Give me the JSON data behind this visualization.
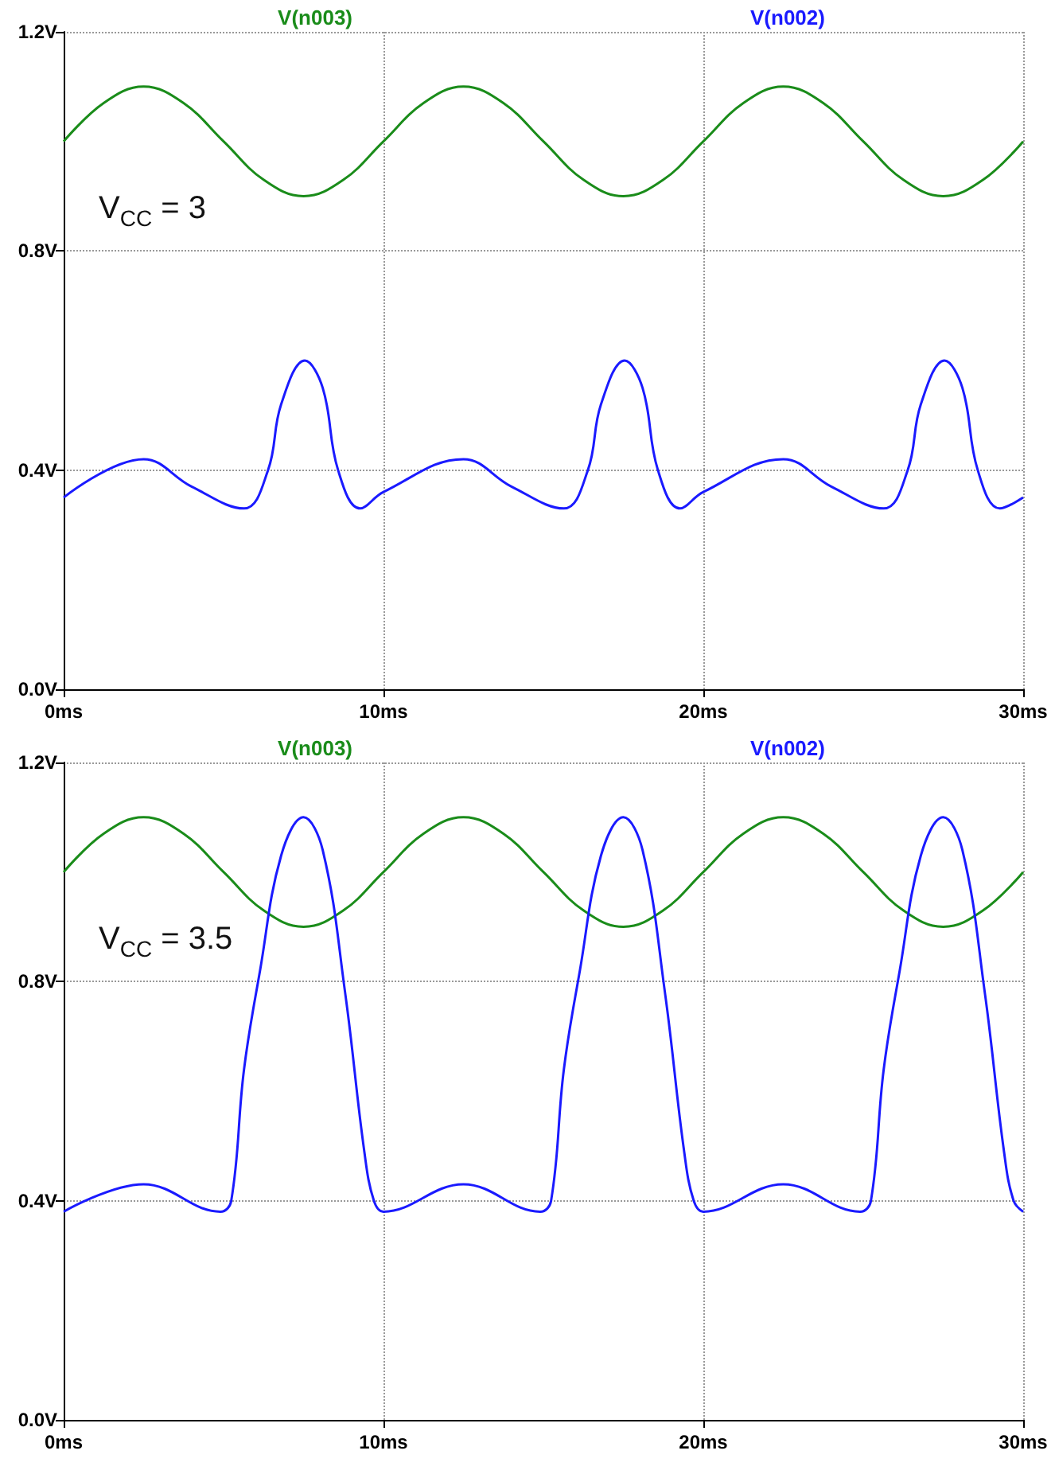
{
  "chart_data": [
    {
      "type": "line",
      "legend": "top",
      "grid": true,
      "xlim": [
        0,
        30
      ],
      "ylim": [
        0,
        1.2
      ],
      "xticks": [
        {
          "value": 0,
          "label": "0ms"
        },
        {
          "value": 10,
          "label": "10ms"
        },
        {
          "value": 20,
          "label": "20ms"
        },
        {
          "value": 30,
          "label": "30ms"
        }
      ],
      "yticks": [
        {
          "value": 0,
          "label": "0.0V"
        },
        {
          "value": 0.4,
          "label": "0.4V"
        },
        {
          "value": 0.8,
          "label": "0.8V"
        },
        {
          "value": 1.2,
          "label": "1.2V"
        }
      ],
      "annotations": [
        "V$_{CC}$ = 3"
      ],
      "series": [
        {
          "name": "V(n003)",
          "color": "#1a8c1a",
          "x": [
            0,
            1.25,
            2.5,
            3.75,
            5,
            6.25,
            7.5,
            8.75,
            10,
            11.25,
            12.5,
            13.75,
            15,
            16.25,
            17.5,
            18.75,
            20,
            21.25,
            22.5,
            23.75,
            25,
            26.25,
            27.5,
            28.75,
            30
          ],
          "values": [
            1.0,
            1.07,
            1.1,
            1.07,
            1.0,
            0.93,
            0.9,
            0.93,
            1.0,
            1.07,
            1.1,
            1.07,
            1.0,
            0.93,
            0.9,
            0.93,
            1.0,
            1.07,
            1.1,
            1.07,
            1.0,
            0.93,
            0.9,
            0.93,
            1.0
          ]
        },
        {
          "name": "V(n002)",
          "color": "#1a1aff",
          "x": [
            0,
            2.5,
            4,
            5.64,
            6.39,
            6.8,
            7.54,
            8.1,
            8.58,
            9.27,
            10,
            12.5,
            14,
            15.64,
            16.39,
            16.8,
            17.54,
            18.1,
            18.58,
            19.27,
            20,
            22.5,
            24,
            25.64,
            26.39,
            26.8,
            27.54,
            28.1,
            28.58,
            29.27,
            30
          ],
          "values": [
            0.35,
            0.42,
            0.37,
            0.33,
            0.4,
            0.52,
            0.6,
            0.55,
            0.4,
            0.33,
            0.36,
            0.42,
            0.37,
            0.33,
            0.4,
            0.52,
            0.6,
            0.55,
            0.4,
            0.33,
            0.36,
            0.42,
            0.37,
            0.33,
            0.4,
            0.52,
            0.6,
            0.55,
            0.4,
            0.33,
            0.35
          ]
        }
      ]
    },
    {
      "type": "line",
      "legend": "top",
      "grid": true,
      "xlim": [
        0,
        30
      ],
      "ylim": [
        0,
        1.2
      ],
      "xticks": [
        {
          "value": 0,
          "label": "0ms"
        },
        {
          "value": 10,
          "label": "10ms"
        },
        {
          "value": 20,
          "label": "20ms"
        },
        {
          "value": 30,
          "label": "30ms"
        }
      ],
      "yticks": [
        {
          "value": 0,
          "label": "0.0V"
        },
        {
          "value": 0.4,
          "label": "0.4V"
        },
        {
          "value": 0.8,
          "label": "0.8V"
        },
        {
          "value": 1.2,
          "label": "1.2V"
        }
      ],
      "annotations": [
        "V$_{CC}$ = 3.5"
      ],
      "series": [
        {
          "name": "V(n003)",
          "color": "#1a8c1a",
          "x": [
            0,
            1.25,
            2.5,
            3.75,
            5,
            6.25,
            7.5,
            8.75,
            10,
            11.25,
            12.5,
            13.75,
            15,
            16.25,
            17.5,
            18.75,
            20,
            21.25,
            22.5,
            23.75,
            25,
            26.25,
            27.5,
            28.75,
            30
          ],
          "values": [
            1.0,
            1.07,
            1.1,
            1.07,
            1.0,
            0.93,
            0.9,
            0.93,
            1.0,
            1.07,
            1.1,
            1.07,
            1.0,
            0.93,
            0.9,
            0.93,
            1.0,
            1.07,
            1.1,
            1.07,
            1.0,
            0.93,
            0.9,
            0.93,
            1.0
          ]
        },
        {
          "name": "V(n002)",
          "color": "#1a1aff",
          "x": [
            0,
            2.5,
            4.9,
            5.24,
            5.64,
            6.14,
            6.8,
            7.5,
            8.1,
            8.8,
            9.4,
            9.7,
            10,
            12.5,
            14.9,
            15.24,
            15.64,
            16.14,
            16.8,
            17.5,
            18.1,
            18.8,
            19.4,
            19.7,
            20,
            22.5,
            24.9,
            25.24,
            25.64,
            26.14,
            26.8,
            27.5,
            28.1,
            28.8,
            29.4,
            29.7,
            30
          ],
          "values": [
            0.38,
            0.43,
            0.38,
            0.4,
            0.64,
            0.82,
            1.03,
            1.1,
            1.04,
            0.78,
            0.49,
            0.4,
            0.38,
            0.43,
            0.38,
            0.4,
            0.64,
            0.82,
            1.03,
            1.1,
            1.04,
            0.78,
            0.49,
            0.4,
            0.38,
            0.43,
            0.38,
            0.4,
            0.64,
            0.82,
            1.03,
            1.1,
            1.04,
            0.78,
            0.49,
            0.4,
            0.38
          ]
        }
      ]
    }
  ]
}
